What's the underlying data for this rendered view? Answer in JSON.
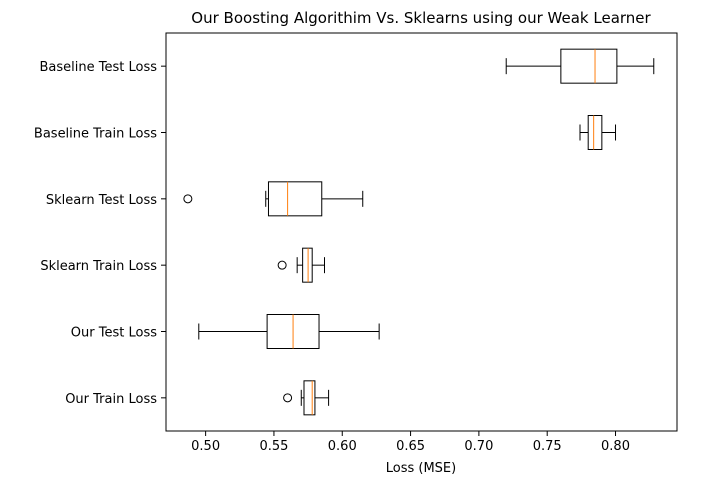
{
  "chart_data": {
    "type": "boxplot",
    "orientation": "horizontal",
    "title": "Our Boosting Algorithim Vs. Sklearns using our Weak Learner",
    "xlabel": "Loss (MSE)",
    "ylabel": "",
    "xlim": [
      0.471,
      0.845
    ],
    "xticks": [
      0.5,
      0.55,
      0.6,
      0.65,
      0.7,
      0.75,
      0.8
    ],
    "xtick_labels": [
      "0.50",
      "0.55",
      "0.60",
      "0.65",
      "0.70",
      "0.75",
      "0.80"
    ],
    "grid": false,
    "box_color": "#000000",
    "median_color": "#ff7f0e",
    "series": [
      {
        "name": "Our Train Loss",
        "whisker_low": 0.57,
        "q1": 0.572,
        "median": 0.578,
        "q3": 0.58,
        "whisker_high": 0.59,
        "outliers": [
          0.56
        ]
      },
      {
        "name": "Our Test Loss",
        "whisker_low": 0.495,
        "q1": 0.545,
        "median": 0.564,
        "q3": 0.583,
        "whisker_high": 0.627,
        "outliers": []
      },
      {
        "name": "Sklearn Train Loss",
        "whisker_low": 0.567,
        "q1": 0.571,
        "median": 0.575,
        "q3": 0.578,
        "whisker_high": 0.587,
        "outliers": [
          0.556
        ]
      },
      {
        "name": "Sklearn Test Loss",
        "whisker_low": 0.544,
        "q1": 0.546,
        "median": 0.56,
        "q3": 0.585,
        "whisker_high": 0.615,
        "outliers": [
          0.487
        ]
      },
      {
        "name": "Baseline Train Loss",
        "whisker_low": 0.774,
        "q1": 0.78,
        "median": 0.784,
        "q3": 0.79,
        "whisker_high": 0.8,
        "outliers": []
      },
      {
        "name": "Baseline Test Loss",
        "whisker_low": 0.72,
        "q1": 0.76,
        "median": 0.785,
        "q3": 0.801,
        "whisker_high": 0.828,
        "outliers": []
      }
    ]
  }
}
